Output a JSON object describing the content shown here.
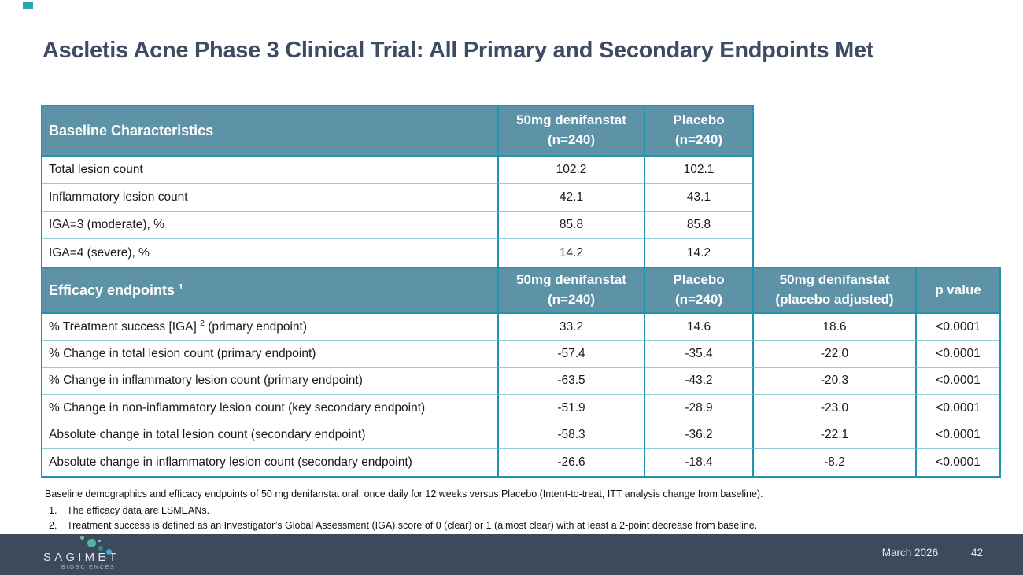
{
  "title": "Ascletis Acne Phase 3 Clinical Trial: All Primary and Secondary Endpoints Met",
  "baseline_table": {
    "header": {
      "label": "Baseline Characteristics",
      "col1_line1": "50mg denifanstat",
      "col1_line2": "(n=240)",
      "col2_line1": "Placebo",
      "col2_line2": "(n=240)"
    },
    "rows": [
      {
        "label": "Total lesion count",
        "denifanstat": "102.2",
        "placebo": "102.1"
      },
      {
        "label": "Inflammatory lesion count",
        "denifanstat": "42.1",
        "placebo": "43.1"
      },
      {
        "label": "IGA=3 (moderate), %",
        "denifanstat": "85.8",
        "placebo": "85.8"
      },
      {
        "label": "IGA=4 (severe), %",
        "denifanstat": "14.2",
        "placebo": "14.2"
      }
    ]
  },
  "efficacy_table": {
    "header": {
      "label": "Efficacy endpoints ",
      "label_sup": "1",
      "col1_line1": "50mg denifanstat",
      "col1_line2": "(n=240)",
      "col2_line1": "Placebo",
      "col2_line2": "(n=240)",
      "col3_line1": "50mg denifanstat",
      "col3_line2": "(placebo adjusted)",
      "col4": "p value"
    },
    "rows": [
      {
        "label": "% Treatment success [IGA] ",
        "label_sup": "2",
        "label_rest": " (primary endpoint)",
        "denifanstat": "33.2",
        "placebo": "14.6",
        "adjusted": "18.6",
        "p_value": "<0.0001"
      },
      {
        "label": "% Change in total lesion count (primary endpoint)",
        "denifanstat": "-57.4",
        "placebo": "-35.4",
        "adjusted": "-22.0",
        "p_value": "<0.0001"
      },
      {
        "label": "% Change in inflammatory lesion count (primary endpoint)",
        "denifanstat": "-63.5",
        "placebo": "-43.2",
        "adjusted": "-20.3",
        "p_value": "<0.0001"
      },
      {
        "label": "% Change in non-inflammatory lesion count (key secondary endpoint)",
        "denifanstat": "-51.9",
        "placebo": "-28.9",
        "adjusted": "-23.0",
        "p_value": "<0.0001"
      },
      {
        "label": "Absolute change in total lesion count (secondary endpoint)",
        "denifanstat": "-58.3",
        "placebo": "-36.2",
        "adjusted": "-22.1",
        "p_value": "<0.0001"
      },
      {
        "label": "Absolute change in inflammatory lesion count (secondary endpoint)",
        "denifanstat": "-26.6",
        "placebo": "-18.4",
        "adjusted": "-8.2",
        "p_value": "<0.0001"
      }
    ]
  },
  "footnotes": {
    "intro": "Baseline demographics and efficacy endpoints of 50 mg denifanstat oral, once daily for 12 weeks versus Placebo (Intent-to-treat, ITT analysis change from baseline).",
    "items": [
      {
        "num": "1.",
        "text": "The efficacy data are LSMEANs."
      },
      {
        "num": "2.",
        "text": "Treatment success is defined as an Investigator’s Global Assessment (IGA) score of 0 (clear) or 1 (almost clear) with at least a 2-point decrease from baseline."
      }
    ]
  },
  "footer": {
    "logo_text": "SAGIMET",
    "logo_subtext": "BIOSCIENCES",
    "date": "March 2026",
    "page_number": "42"
  },
  "colors": {
    "header_teal": "#5E93A7",
    "border_teal": "#1E95AD",
    "row_divider": "#93CEDA",
    "title_color": "#3E4C63",
    "footer_bg": "#3D4A5C",
    "accent_teal": "#2FA3B6"
  }
}
